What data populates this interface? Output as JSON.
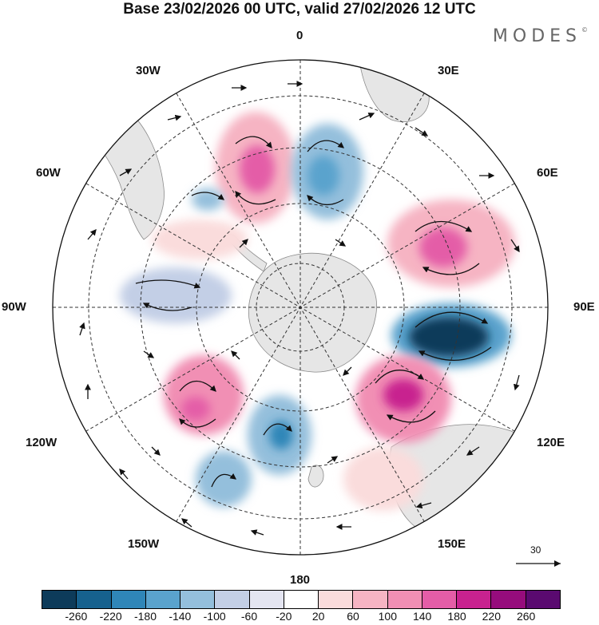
{
  "title": "Base 23/02/2026 00 UTC, valid 27/02/2026 12 UTC",
  "brand": "MODES",
  "brand_mark": "©",
  "longitude_labels": {
    "lon_0": "0",
    "lon_30e": "30E",
    "lon_60e": "60E",
    "lon_90e": "90E",
    "lon_120e": "120E",
    "lon_150e": "150E",
    "lon_180": "180",
    "lon_150w": "150W",
    "lon_120w": "120W",
    "lon_90w": "90W",
    "lon_60w": "60W",
    "lon_30w": "30W"
  },
  "reference_vector_label": "30",
  "colorbar": {
    "colors": [
      "#0d3b5a",
      "#16618e",
      "#2f86b8",
      "#5aa3cd",
      "#94bfdc",
      "#c3cfe6",
      "#e4e5f1",
      "#ffffff",
      "#fadcdc",
      "#f6b4c3",
      "#f18fb4",
      "#e45da7",
      "#c8228f",
      "#960c7c",
      "#5a0a70"
    ],
    "ticks": [
      "-260",
      "-220",
      "-180",
      "-140",
      "-100",
      "-60",
      "-20",
      "20",
      "60",
      "100",
      "140",
      "180",
      "220",
      "260"
    ]
  },
  "map_colors": {
    "ocean": "#ffffff",
    "land": "#e7e7e7",
    "coast": "#8a8a8a",
    "grid": "#333333"
  }
}
